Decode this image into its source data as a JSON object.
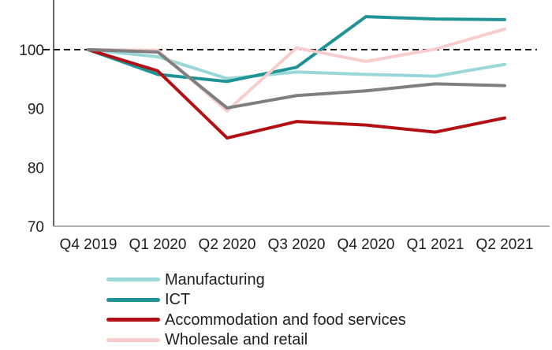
{
  "chart_data": {
    "type": "line",
    "title": "",
    "categories": [
      "Q4 2019",
      "Q1 2020",
      "Q2 2020",
      "Q3 2020",
      "Q4 2020",
      "Q1 2021",
      "Q2 2021"
    ],
    "series": [
      {
        "key": "manufacturing",
        "label": "Manufacturing",
        "color": "#9AD7D8",
        "in_legend": true,
        "values": [
          100,
          98.8,
          95.1,
          96.2,
          95.8,
          95.5,
          97.5
        ]
      },
      {
        "key": "ict",
        "label": "ICT",
        "color": "#1E9496",
        "in_legend": true,
        "values": [
          100,
          95.8,
          94.6,
          97.0,
          105.6,
          105.2,
          105.1
        ]
      },
      {
        "key": "accommodation-food-services",
        "label": "Accommodation and food services",
        "color": "#B21014",
        "in_legend": true,
        "values": [
          100,
          96.4,
          85.0,
          87.8,
          87.2,
          86.0,
          88.4
        ]
      },
      {
        "key": "wholesale-retail",
        "label": "Wholesale and retail",
        "color": "#F7CDCD",
        "in_legend": true,
        "values": [
          100,
          99.9,
          89.6,
          100.3,
          98.0,
          100.1,
          103.5
        ]
      },
      {
        "key": "unlabeled-gray",
        "label": "",
        "color": "#7F7F7F",
        "in_legend": false,
        "values": [
          100,
          99.6,
          90.1,
          92.2,
          93.0,
          94.2,
          93.9
        ]
      }
    ],
    "y_ticks": [
      100,
      90,
      80,
      70
    ],
    "baseline": {
      "value": 100,
      "style": "dashed",
      "color": "#1a1a1a"
    },
    "ylim_visible": [
      70,
      108
    ],
    "xlabel": "",
    "ylabel": "",
    "grid": false,
    "legend_position": "bottom-left",
    "text_color": "#202020",
    "y_axis_color": "#404040",
    "x_axis_color": "#A6A6A6"
  }
}
